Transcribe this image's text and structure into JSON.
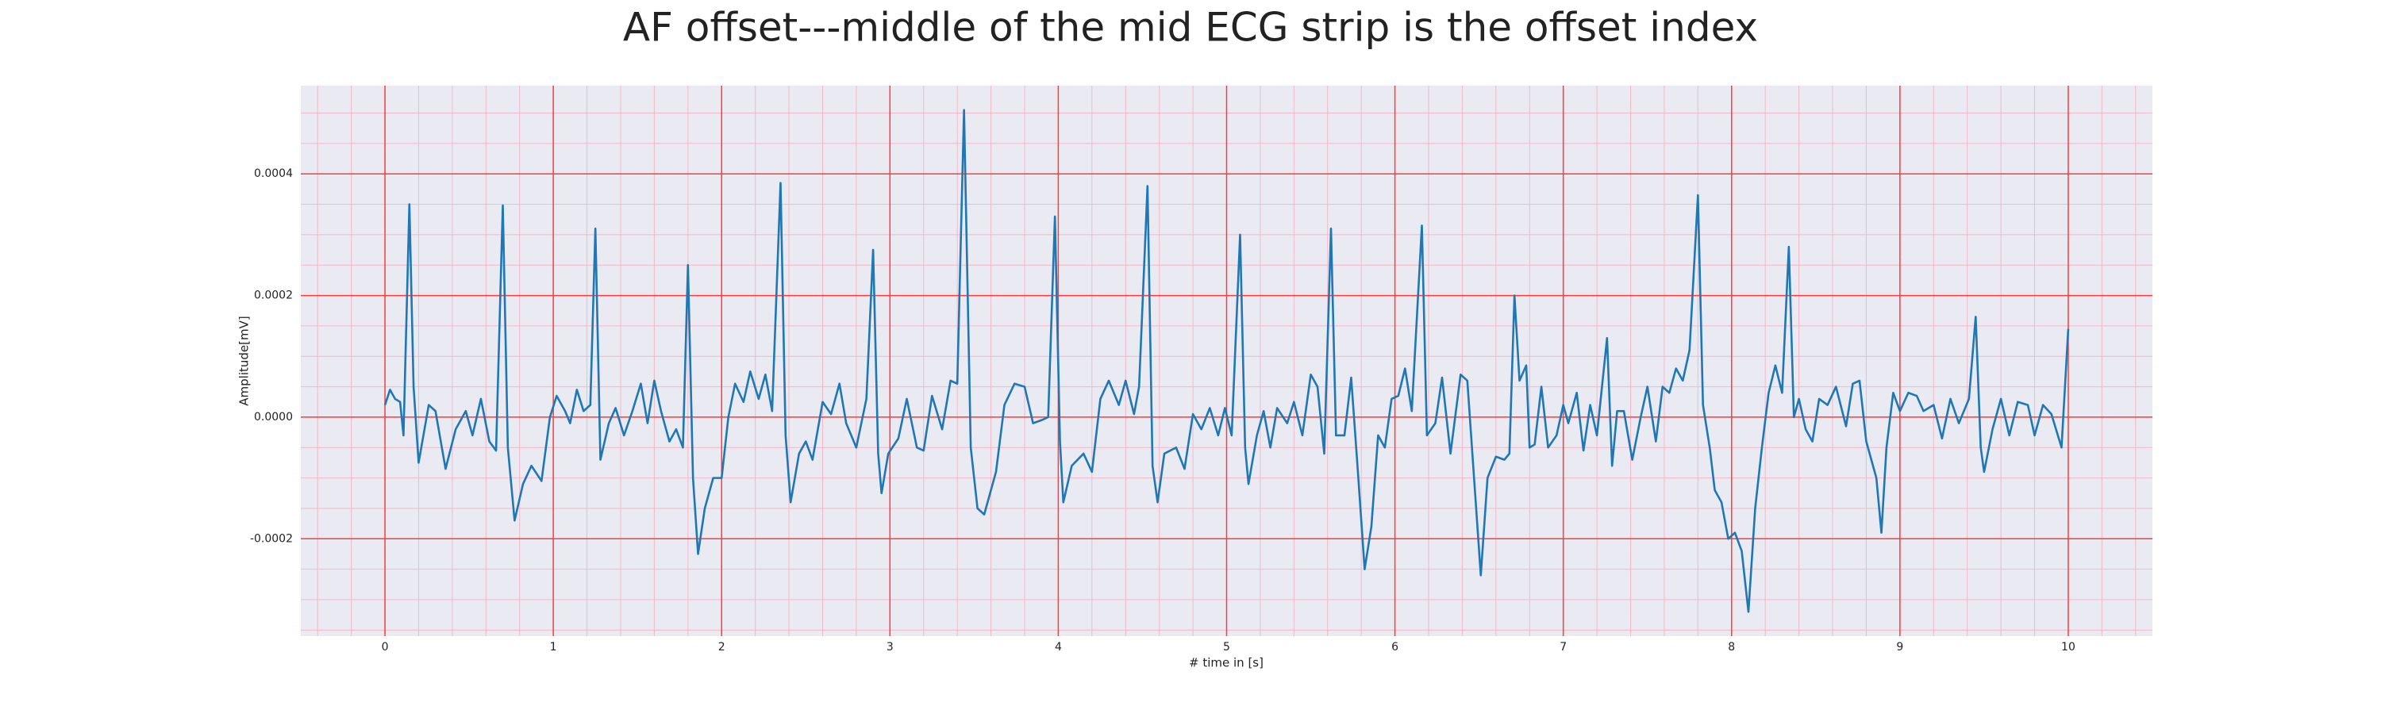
{
  "chart_data": {
    "type": "line",
    "title": "AF offset---middle of the mid ECG strip is the offset index",
    "xlabel": "# time in [s]",
    "ylabel": "Amplitude[mV]",
    "xlim": [
      -0.5,
      10.5
    ],
    "xticks": [
      0,
      1,
      2,
      3,
      4,
      5,
      6,
      7,
      8,
      9,
      10
    ],
    "ylim": [
      -0.00036,
      0.000545
    ],
    "yticks": [
      {
        "value": -0.0002,
        "label": "-0.0002"
      },
      {
        "value": 0,
        "label": "0.0000"
      },
      {
        "value": 0.0002,
        "label": "0.0002"
      },
      {
        "value": 0.0004,
        "label": "0.0004"
      }
    ],
    "grid": true,
    "minor_grid": true,
    "background": "#eaeaf2",
    "grid_color": "#ff3b3b",
    "minor_grid_color": "#f4b8c8",
    "color": "#1f77b4",
    "x": [
      0,
      0.03,
      0.06,
      0.09,
      0.11,
      0.145,
      0.17,
      0.2,
      0.26,
      0.3,
      0.36,
      0.42,
      0.48,
      0.52,
      0.57,
      0.62,
      0.66,
      0.7,
      0.73,
      0.77,
      0.82,
      0.87,
      0.93,
      0.98,
      1.02,
      1.07,
      1.1,
      1.14,
      1.18,
      1.22,
      1.25,
      1.28,
      1.33,
      1.37,
      1.42,
      1.47,
      1.52,
      1.56,
      1.6,
      1.64,
      1.69,
      1.73,
      1.77,
      1.8,
      1.83,
      1.86,
      1.9,
      1.95,
      2.0,
      2.04,
      2.08,
      2.13,
      2.17,
      2.22,
      2.26,
      2.3,
      2.35,
      2.38,
      2.41,
      2.46,
      2.5,
      2.54,
      2.6,
      2.65,
      2.7,
      2.74,
      2.8,
      2.86,
      2.9,
      2.93,
      2.95,
      2.99,
      3.05,
      3.1,
      3.16,
      3.2,
      3.25,
      3.31,
      3.36,
      3.4,
      3.44,
      3.48,
      3.52,
      3.56,
      3.6,
      3.63,
      3.68,
      3.74,
      3.8,
      3.85,
      3.9,
      3.94,
      3.98,
      4.01,
      4.03,
      4.08,
      4.15,
      4.2,
      4.25,
      4.3,
      4.36,
      4.4,
      4.45,
      4.48,
      4.53,
      4.56,
      4.59,
      4.63,
      4.7,
      4.75,
      4.8,
      4.85,
      4.9,
      4.95,
      4.99,
      5.03,
      5.08,
      5.11,
      5.13,
      5.18,
      5.22,
      5.26,
      5.3,
      5.36,
      5.4,
      5.45,
      5.5,
      5.54,
      5.58,
      5.62,
      5.65,
      5.7,
      5.74,
      5.78,
      5.82,
      5.86,
      5.9,
      5.94,
      5.98,
      6.02,
      6.06,
      6.1,
      6.16,
      6.19,
      6.24,
      6.28,
      6.33,
      6.39,
      6.43,
      6.47,
      6.51,
      6.55,
      6.6,
      6.65,
      6.68,
      6.71,
      6.74,
      6.78,
      6.8,
      6.83,
      6.87,
      6.91,
      6.96,
      7.0,
      7.03,
      7.08,
      7.12,
      7.16,
      7.2,
      7.26,
      7.29,
      7.32,
      7.36,
      7.41,
      7.46,
      7.5,
      7.55,
      7.59,
      7.63,
      7.67,
      7.71,
      7.75,
      7.8,
      7.83,
      7.87,
      7.9,
      7.94,
      7.98,
      8.02,
      8.06,
      8.1,
      8.14,
      8.18,
      8.22,
      8.26,
      8.3,
      8.34,
      8.37,
      8.4,
      8.44,
      8.48,
      8.52,
      8.57,
      8.62,
      8.68,
      8.72,
      8.76,
      8.8,
      8.86,
      8.89,
      8.92,
      8.96,
      9.0,
      9.05,
      9.1,
      9.14,
      9.2,
      9.25,
      9.3,
      9.35,
      9.41,
      9.45,
      9.48,
      9.5,
      9.55,
      9.6,
      9.65,
      9.7,
      9.76,
      9.8,
      9.85,
      9.9,
      9.96,
      10.0
    ],
    "values": [
      2e-05,
      4.5e-05,
      3e-05,
      2.5e-05,
      -3e-05,
      0.00035,
      5e-05,
      -7.5e-05,
      2e-05,
      1e-05,
      -8.5e-05,
      -2e-05,
      1e-05,
      -3e-05,
      3e-05,
      -4e-05,
      -5.5e-05,
      0.000348,
      -5e-05,
      -0.00017,
      -0.00011,
      -8e-05,
      -0.000105,
      0,
      3.5e-05,
      1e-05,
      -1e-05,
      4.5e-05,
      1e-05,
      2e-05,
      0.00031,
      -7e-05,
      -1e-05,
      1.5e-05,
      -3e-05,
      1e-05,
      5.5e-05,
      -1e-05,
      6e-05,
      1e-05,
      -4e-05,
      -2e-05,
      -5e-05,
      0.00025,
      -0.0001,
      -0.000225,
      -0.00015,
      -0.0001,
      -0.0001,
      0,
      5.5e-05,
      2.5e-05,
      7.5e-05,
      3e-05,
      7e-05,
      1e-05,
      0.000385,
      -3e-05,
      -0.00014,
      -6e-05,
      -4e-05,
      -7e-05,
      2.5e-05,
      5e-06,
      5.5e-05,
      -1e-05,
      -5e-05,
      3e-05,
      0.000275,
      -6e-05,
      -0.000125,
      -6e-05,
      -3.5e-05,
      3e-05,
      -5e-05,
      -5.5e-05,
      3.5e-05,
      -2e-05,
      6e-05,
      5.5e-05,
      0.000505,
      -5e-05,
      -0.00015,
      -0.00016,
      -0.00012,
      -9e-05,
      2e-05,
      5.5e-05,
      5e-05,
      -1e-05,
      -5e-06,
      0,
      0.00033,
      -4e-05,
      -0.00014,
      -8e-05,
      -6e-05,
      -9e-05,
      3e-05,
      6e-05,
      2e-05,
      6e-05,
      5e-06,
      5e-05,
      0.00038,
      -8e-05,
      -0.00014,
      -6e-05,
      -5e-05,
      -8.5e-05,
      5e-06,
      -2e-05,
      1.5e-05,
      -3e-05,
      1.5e-05,
      -3e-05,
      0.0003,
      -5e-05,
      -0.00011,
      -3e-05,
      1e-05,
      -5e-05,
      1.5e-05,
      -1e-05,
      2.5e-05,
      -3e-05,
      7e-05,
      5e-05,
      -6e-05,
      0.00031,
      -3e-05,
      -3e-05,
      6.5e-05,
      -9e-05,
      -0.00025,
      -0.00018,
      -3e-05,
      -5e-05,
      3e-05,
      3.5e-05,
      8e-05,
      1e-05,
      0.000315,
      -3e-05,
      -1e-05,
      6.5e-05,
      -6e-05,
      7e-05,
      6e-05,
      -0.0001,
      -0.00026,
      -0.0001,
      -6.5e-05,
      -7e-05,
      -6e-05,
      0.0002,
      6e-05,
      8.5e-05,
      -5e-05,
      -4.5e-05,
      5e-05,
      -5e-05,
      -3e-05,
      2e-05,
      -1e-05,
      4e-05,
      -5.5e-05,
      2e-05,
      -3e-05,
      0.00013,
      -8e-05,
      1e-05,
      1e-05,
      -7e-05,
      0,
      5e-05,
      -4e-05,
      5e-05,
      4e-05,
      8e-05,
      6e-05,
      0.00011,
      0.000365,
      2e-05,
      -5e-05,
      -0.00012,
      -0.00014,
      -0.0002,
      -0.00019,
      -0.00022,
      -0.00032,
      -0.00015,
      -5e-05,
      4e-05,
      8.5e-05,
      4e-05,
      0.00028,
      0,
      3e-05,
      -2e-05,
      -4e-05,
      3e-05,
      2e-05,
      5e-05,
      -1.5e-05,
      5.5e-05,
      6e-05,
      -4e-05,
      -0.0001,
      -0.00019,
      -5e-05,
      4e-05,
      1e-05,
      4e-05,
      3.5e-05,
      1e-05,
      2e-05,
      -3.5e-05,
      3e-05,
      -1e-05,
      3e-05,
      0.000165,
      -5e-05,
      -9e-05,
      -2e-05,
      3e-05,
      -3e-05,
      2.5e-05,
      2e-05,
      -3e-05,
      2e-05,
      5e-06,
      -5e-05,
      0.000145
    ]
  }
}
